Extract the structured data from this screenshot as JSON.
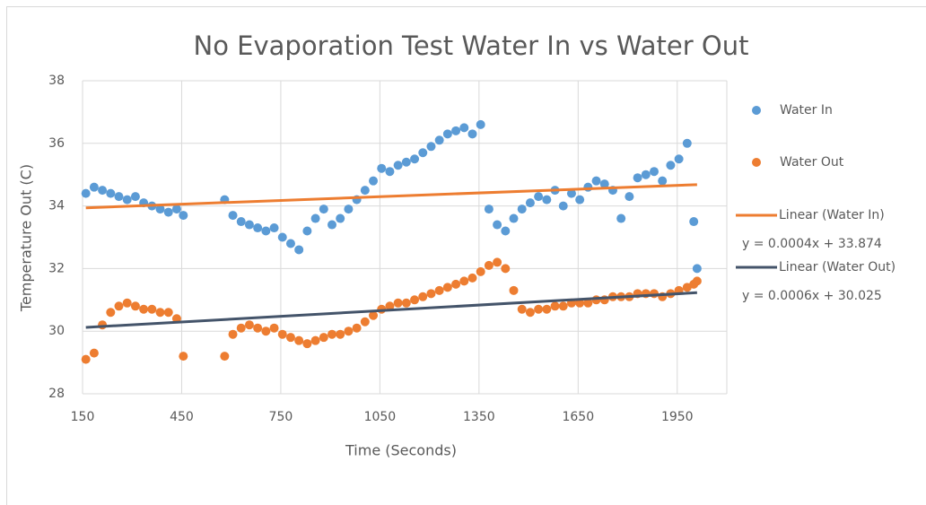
{
  "chart_data": {
    "type": "scatter",
    "title": "No Evaporation Test Water In vs Water Out",
    "x_label": "Time (Seconds)",
    "y_label": "Temperature Out (C)",
    "xlim": [
      150,
      2100
    ],
    "xticks": [
      150,
      450,
      750,
      1050,
      1350,
      1650,
      1950
    ],
    "ylim": [
      28,
      38
    ],
    "yticks": [
      28,
      30,
      32,
      34,
      36,
      38
    ],
    "grid": true,
    "legend": "right",
    "x": [
      160,
      185,
      210,
      235,
      260,
      285,
      310,
      335,
      360,
      385,
      410,
      435,
      455,
      580,
      605,
      630,
      655,
      680,
      705,
      730,
      755,
      780,
      805,
      830,
      855,
      880,
      905,
      930,
      955,
      980,
      1005,
      1030,
      1055,
      1080,
      1105,
      1130,
      1155,
      1180,
      1205,
      1230,
      1255,
      1280,
      1305,
      1330,
      1355,
      1380,
      1405,
      1430,
      1455,
      1480,
      1505,
      1530,
      1555,
      1580,
      1605,
      1630,
      1655,
      1680,
      1705,
      1730,
      1755,
      1780,
      1805,
      1830,
      1855,
      1880,
      1905,
      1930,
      1955,
      1980,
      2000,
      2010
    ],
    "series": [
      {
        "name": "Water In",
        "color": "#5b9bd5",
        "values": [
          34.4,
          34.6,
          34.5,
          34.4,
          34.3,
          34.2,
          34.3,
          34.1,
          34.0,
          33.9,
          33.8,
          33.9,
          33.7,
          34.2,
          33.7,
          33.5,
          33.4,
          33.3,
          33.2,
          33.3,
          33.0,
          32.8,
          32.6,
          33.2,
          33.6,
          33.9,
          33.4,
          33.6,
          33.9,
          34.2,
          34.5,
          34.8,
          35.2,
          35.1,
          35.3,
          35.4,
          35.5,
          35.7,
          35.9,
          36.1,
          36.3,
          36.4,
          36.5,
          36.3,
          36.6,
          33.9,
          33.4,
          33.2,
          33.6,
          33.9,
          34.1,
          34.3,
          34.2,
          34.5,
          34.0,
          34.4,
          34.2,
          34.6,
          34.8,
          34.7,
          34.5,
          33.6,
          34.3,
          34.9,
          35.0,
          35.1,
          34.8,
          35.3,
          35.5,
          36.0,
          33.5,
          32.0
        ]
      },
      {
        "name": "Water Out",
        "color": "#ed7d31",
        "values": [
          29.1,
          29.3,
          30.2,
          30.6,
          30.8,
          30.9,
          30.8,
          30.7,
          30.7,
          30.6,
          30.6,
          30.4,
          29.2,
          29.2,
          29.9,
          30.1,
          30.2,
          30.1,
          30.0,
          30.1,
          29.9,
          29.8,
          29.7,
          29.6,
          29.7,
          29.8,
          29.9,
          29.9,
          30.0,
          30.1,
          30.3,
          30.5,
          30.7,
          30.8,
          30.9,
          30.9,
          31.0,
          31.1,
          31.2,
          31.3,
          31.4,
          31.5,
          31.6,
          31.7,
          31.9,
          32.1,
          32.2,
          32.0,
          31.3,
          30.7,
          30.6,
          30.7,
          30.7,
          30.8,
          30.8,
          30.9,
          30.9,
          30.9,
          31.0,
          31.0,
          31.1,
          31.1,
          31.1,
          31.2,
          31.2,
          31.2,
          31.1,
          31.2,
          31.3,
          31.4,
          31.5,
          31.6
        ]
      }
    ],
    "trendlines": [
      {
        "name": "Linear (Water In)",
        "color": "#ed7d31",
        "equation": "y = 0.0004x + 33.874",
        "x": [
          160,
          2010
        ],
        "values": [
          33.94,
          34.68
        ]
      },
      {
        "name": "Linear (Water Out)",
        "color": "#44546a",
        "equation": "y = 0.0006x + 30.025",
        "x": [
          160,
          2010
        ],
        "values": [
          30.12,
          31.23
        ]
      }
    ]
  }
}
